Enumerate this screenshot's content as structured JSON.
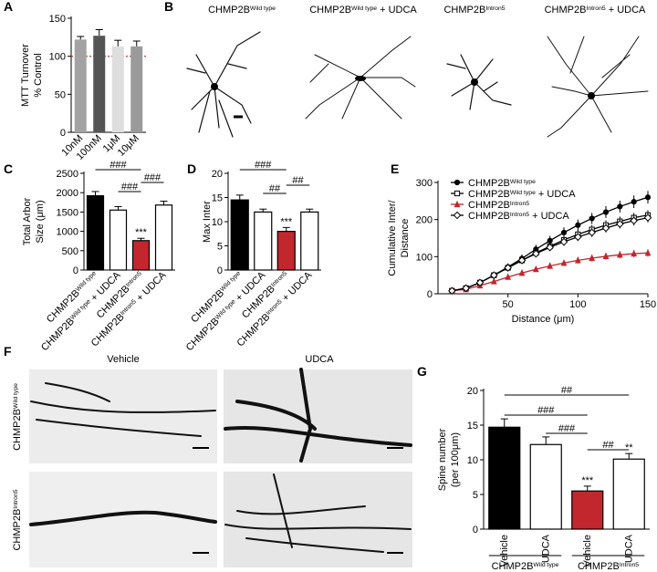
{
  "chart_data": [
    {
      "type": "bar",
      "panel": "A",
      "ylabel": [
        "MTT Turnover",
        "% Control"
      ],
      "categories": [
        {
          "text": "10nM"
        },
        {
          "text": "100nM"
        },
        {
          "text": "1μM"
        },
        {
          "text": "10μM"
        }
      ],
      "values": [
        122,
        127,
        113,
        113
      ],
      "errors": [
        4,
        8,
        8,
        7
      ],
      "colors": [
        "#a3a3a3",
        "#555555",
        "#dedede",
        "#9a9a9a"
      ],
      "reference_line": {
        "value": 100,
        "color": "#c1272d"
      },
      "ylim": [
        0,
        150
      ],
      "yticks": [
        0,
        50,
        100,
        150
      ]
    },
    {
      "type": "bar",
      "panel": "C",
      "ylabel": [
        "Total Arbor",
        "Size (μm)"
      ],
      "categories": [
        {
          "text": "CHMP2B",
          "sup": "Wild type"
        },
        {
          "text": "CHMP2B",
          "sup": "Wild type",
          "suffix": " + UDCA"
        },
        {
          "text": "CHMP2B",
          "sup": "Intron5"
        },
        {
          "text": "CHMP2B",
          "sup": "Intron5",
          "suffix": " + UDCA"
        }
      ],
      "values": [
        1920,
        1550,
        760,
        1680
      ],
      "errors": [
        110,
        90,
        60,
        100
      ],
      "colors": [
        "#000000",
        "#ffffff",
        "#c1272d",
        "#ffffff"
      ],
      "bar_labels": [
        {
          "index": 2,
          "text": "***"
        }
      ],
      "brackets": [
        {
          "from": 0,
          "to": 2,
          "label": "###"
        },
        {
          "from": 1,
          "to": 2,
          "label": "###"
        },
        {
          "from": 2,
          "to": 3,
          "label": "###"
        }
      ],
      "ylim": [
        0,
        2500
      ],
      "yticks": [
        0,
        500,
        1000,
        1500,
        2000,
        2500
      ]
    },
    {
      "type": "bar",
      "panel": "D",
      "ylabel": [
        "Max Inter"
      ],
      "categories": [
        {
          "text": "CHMP2B",
          "sup": "Wild type"
        },
        {
          "text": "CHMP2B",
          "sup": "Wild type",
          "suffix": " + UDCA"
        },
        {
          "text": "CHMP2B",
          "sup": "Intron5"
        },
        {
          "text": "CHMP2B",
          "sup": "Intron5",
          "suffix": " + UDCA"
        }
      ],
      "values": [
        14.5,
        12,
        8,
        12
      ],
      "errors": [
        1,
        0.6,
        0.8,
        0.6
      ],
      "colors": [
        "#000000",
        "#ffffff",
        "#c1272d",
        "#ffffff"
      ],
      "bar_labels": [
        {
          "index": 2,
          "text": "***"
        }
      ],
      "brackets": [
        {
          "from": 0,
          "to": 2,
          "label": "###"
        },
        {
          "from": 1,
          "to": 2,
          "label": "##"
        },
        {
          "from": 2,
          "to": 3,
          "label": "##"
        }
      ],
      "ylim": [
        0,
        20
      ],
      "yticks": [
        0,
        5,
        10,
        15,
        20
      ]
    },
    {
      "type": "line",
      "panel": "E",
      "ylabel": [
        "Cumulative Inter/",
        "Distance"
      ],
      "xlabel": "Distance (μm)",
      "x": [
        10,
        20,
        30,
        40,
        50,
        60,
        70,
        80,
        90,
        100,
        110,
        120,
        130,
        140,
        150
      ],
      "series": [
        {
          "name": {
            "text": "CHMP2B",
            "sup": "Wild type"
          },
          "color": "#000000",
          "marker": "circle",
          "values": [
            8,
            15,
            30,
            50,
            72,
            95,
            120,
            143,
            165,
            185,
            203,
            220,
            235,
            248,
            260
          ],
          "errors": [
            3,
            4,
            6,
            8,
            10,
            11,
            12,
            13,
            14,
            15,
            15,
            16,
            16,
            17,
            17
          ]
        },
        {
          "name": {
            "text": "CHMP2B",
            "sup": "Wild type",
            "suffix": " + UDCA"
          },
          "color": "#000000",
          "marker": "square",
          "values": [
            8,
            15,
            30,
            50,
            70,
            90,
            110,
            128,
            145,
            160,
            173,
            185,
            195,
            205,
            212
          ],
          "errors": [
            3,
            4,
            5,
            7,
            8,
            9,
            10,
            11,
            11,
            12,
            12,
            13,
            13,
            13,
            13
          ]
        },
        {
          "name": {
            "text": "CHMP2B",
            "sup": "Intron5"
          },
          "color": "#c1272d",
          "marker": "triangle",
          "values": [
            8,
            12,
            22,
            33,
            45,
            56,
            66,
            75,
            83,
            90,
            96,
            101,
            105,
            108,
            110
          ],
          "errors": [
            2,
            3,
            4,
            5,
            6,
            7,
            7,
            8,
            8,
            9,
            9,
            9,
            10,
            10,
            10
          ]
        },
        {
          "name": {
            "text": "CHMP2B",
            "sup": "Intron5",
            "suffix": " + UDCA"
          },
          "color": "#000000",
          "marker": "diamond",
          "values": [
            8,
            15,
            30,
            50,
            70,
            90,
            108,
            125,
            140,
            153,
            165,
            177,
            188,
            197,
            205
          ],
          "errors": [
            3,
            4,
            5,
            7,
            8,
            9,
            10,
            10,
            11,
            11,
            12,
            12,
            12,
            13,
            13
          ]
        }
      ],
      "xlim": [
        0,
        150
      ],
      "xticks": [
        50,
        100,
        150
      ],
      "ylim": [
        0,
        300
      ],
      "yticks": [
        0,
        100,
        200,
        300
      ]
    },
    {
      "type": "bar",
      "panel": "G",
      "ylabel": [
        "Spine number",
        "(per 100μm)"
      ],
      "categories": [
        {
          "text": "Vehicle"
        },
        {
          "text": "UDCA"
        },
        {
          "text": "Vehicle"
        },
        {
          "text": "UDCA"
        }
      ],
      "groups": [
        {
          "text": "CHMP2B",
          "sup": "Wild type"
        },
        {
          "text": "CHMP2B",
          "sup": "Intron5"
        }
      ],
      "values": [
        14.7,
        12.2,
        5.5,
        10.1
      ],
      "errors": [
        1.2,
        1.1,
        0.7,
        0.8
      ],
      "colors": [
        "#000000",
        "#ffffff",
        "#c1272d",
        "#ffffff"
      ],
      "bar_labels": [
        {
          "index": 2,
          "text": "***"
        },
        {
          "index": 3,
          "text": "**"
        }
      ],
      "brackets": [
        {
          "from": 0,
          "to": 3,
          "label": "##"
        },
        {
          "from": 0,
          "to": 2,
          "label": "###"
        },
        {
          "from": 1,
          "to": 2,
          "label": "###"
        },
        {
          "from": 2,
          "to": 3,
          "label": "##"
        }
      ],
      "ylim": [
        0,
        20
      ],
      "yticks": [
        0,
        5,
        10,
        15,
        20
      ]
    }
  ],
  "panel_B": {
    "panel": "B",
    "titles": [
      {
        "text": "CHMP2B",
        "sup": "Wild type"
      },
      {
        "text": "CHMP2B",
        "sup": "Wild type",
        "suffix": " + UDCA"
      },
      {
        "text": "CHMP2B",
        "sup": "Intron5"
      },
      {
        "text": "CHMP2B",
        "sup": "Intron5",
        "suffix": " + UDCA"
      }
    ]
  },
  "panel_F": {
    "panel": "F",
    "columns": [
      "Vehicle",
      "UDCA"
    ],
    "rows": [
      {
        "text": "CHMP2B",
        "sup": "Wild type"
      },
      {
        "text": "CHMP2B",
        "sup": "Intron5"
      }
    ]
  }
}
